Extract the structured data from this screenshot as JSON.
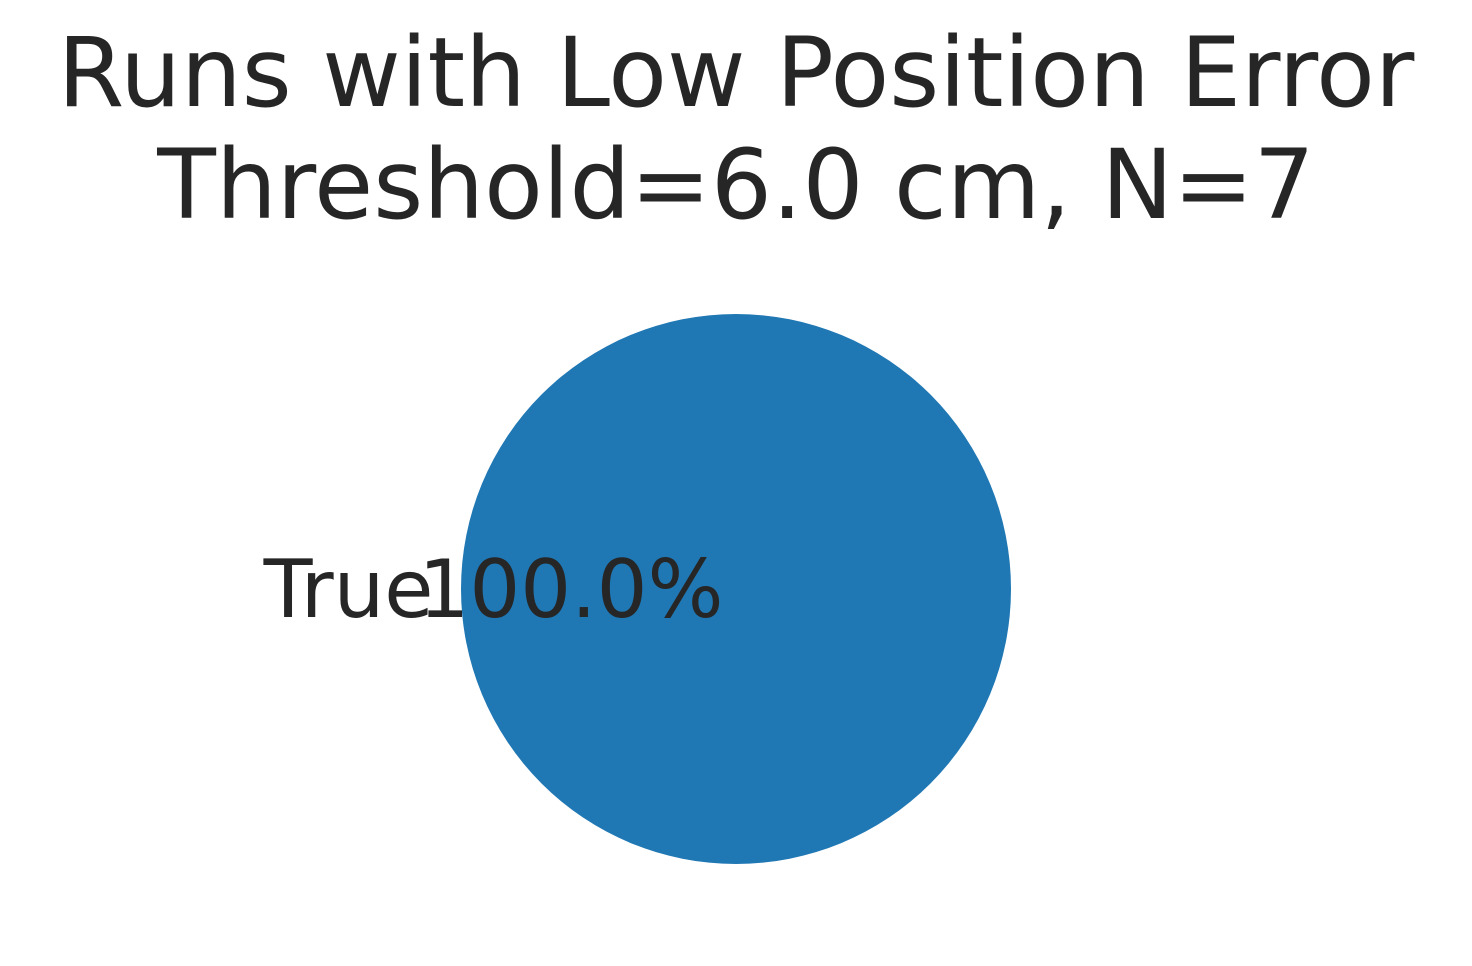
{
  "chart_data": {
    "type": "pie",
    "title_lines": [
      "Runs with Low Position Error",
      "Threshold=6.0 cm, N=7"
    ],
    "slices": [
      {
        "label": "True",
        "value": 100.0,
        "pct_label": "100.0%",
        "color": "#1f77b4"
      }
    ],
    "text_color": "#262626",
    "legend": "none",
    "grid": false
  }
}
